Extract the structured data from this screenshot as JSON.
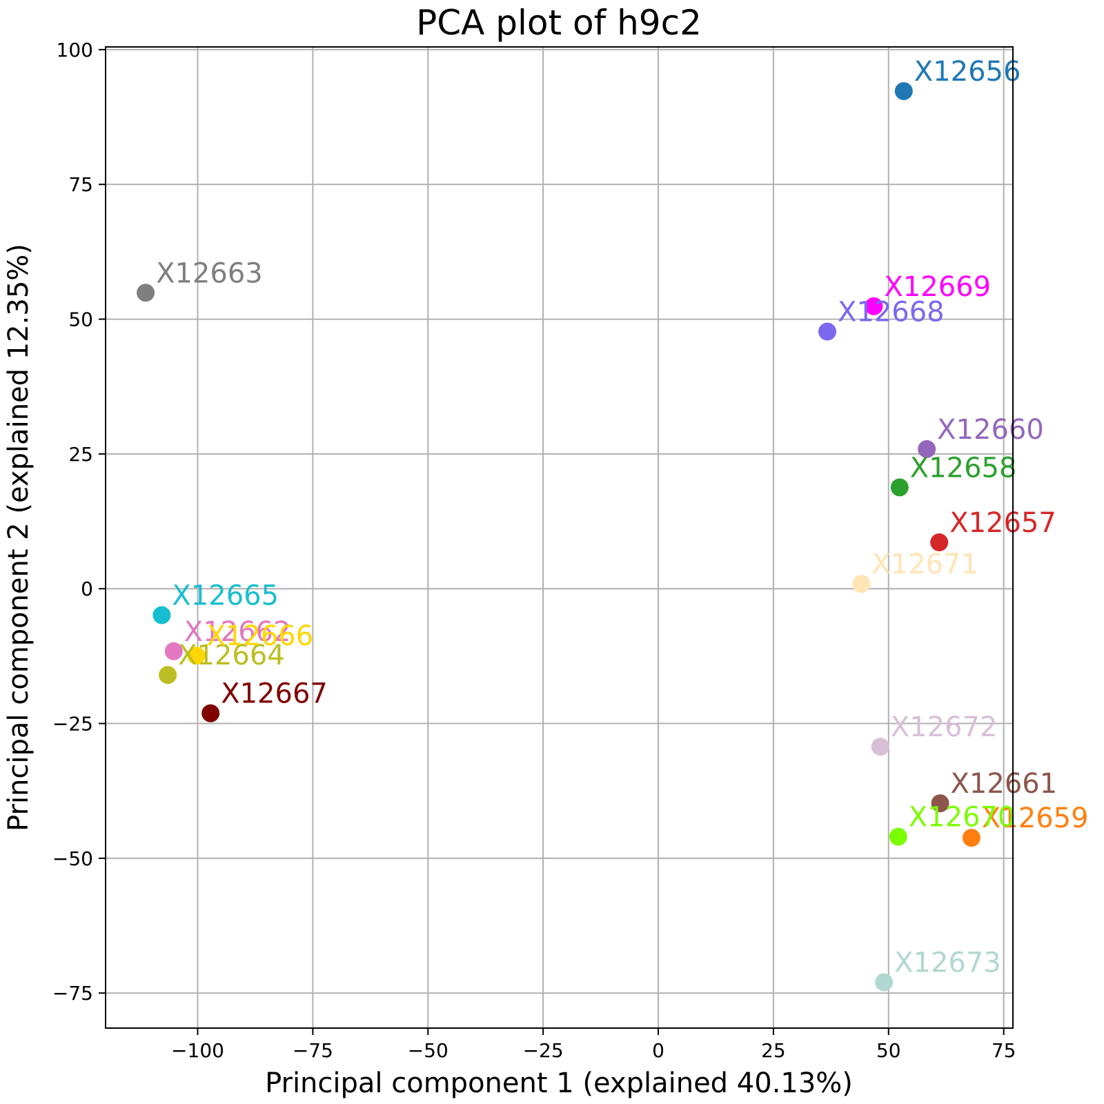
{
  "chart_data": {
    "type": "scatter",
    "title": "PCA plot of h9c2",
    "xlabel": "Principal component 1 (explained 40.13%)",
    "ylabel": "Principal component 2 (explained 12.35%)",
    "xlim": [
      -120,
      77
    ],
    "ylim": [
      -81.5,
      100.5
    ],
    "xticks": [
      -100,
      -75,
      -50,
      -25,
      0,
      25,
      50,
      75
    ],
    "yticks": [
      -75,
      -50,
      -25,
      0,
      25,
      50,
      75,
      100
    ],
    "xtick_labels": [
      "−100",
      "−75",
      "−50",
      "−25",
      "0",
      "25",
      "50",
      "75"
    ],
    "ytick_labels": [
      "−75",
      "−50",
      "−25",
      "0",
      "25",
      "50",
      "75",
      "100"
    ],
    "grid": true,
    "points": [
      {
        "label": "X12656",
        "x": 53.3,
        "y": 92.3,
        "color": "#1f77b4"
      },
      {
        "label": "X12657",
        "x": 61.0,
        "y": 8.6,
        "color": "#d62728"
      },
      {
        "label": "X12658",
        "x": 52.4,
        "y": 18.8,
        "color": "#2ca02c"
      },
      {
        "label": "X12659",
        "x": 68.0,
        "y": -46.2,
        "color": "#ff7f0e"
      },
      {
        "label": "X12660",
        "x": 58.3,
        "y": 25.9,
        "color": "#9467bd"
      },
      {
        "label": "X12661",
        "x": 61.2,
        "y": -39.8,
        "color": "#8c564b"
      },
      {
        "label": "X12662",
        "x": -105.2,
        "y": -11.6,
        "color": "#e377c2"
      },
      {
        "label": "X12663",
        "x": -111.3,
        "y": 54.9,
        "color": "#7f7f7f"
      },
      {
        "label": "X12664",
        "x": -106.5,
        "y": -16.0,
        "color": "#bcbd22"
      },
      {
        "label": "X12665",
        "x": -107.8,
        "y": -4.9,
        "color": "#17becf"
      },
      {
        "label": "X12666",
        "x": -100.3,
        "y": -12.4,
        "color": "#ffd700"
      },
      {
        "label": "X12667",
        "x": -97.2,
        "y": -23.1,
        "color": "#800000"
      },
      {
        "label": "X12668",
        "x": 36.7,
        "y": 47.7,
        "color": "#7b68ee"
      },
      {
        "label": "X12669",
        "x": 46.8,
        "y": 52.4,
        "color": "#ff00ff"
      },
      {
        "label": "X12670",
        "x": 52.1,
        "y": -46.0,
        "color": "#7cfc00"
      },
      {
        "label": "X12671",
        "x": 44.1,
        "y": 0.9,
        "color": "#ffe4b5"
      },
      {
        "label": "X12672",
        "x": 48.2,
        "y": -29.3,
        "color": "#d8bfd8"
      },
      {
        "label": "X12673",
        "x": 49.0,
        "y": -73.0,
        "color": "#b0d8d0"
      }
    ]
  }
}
